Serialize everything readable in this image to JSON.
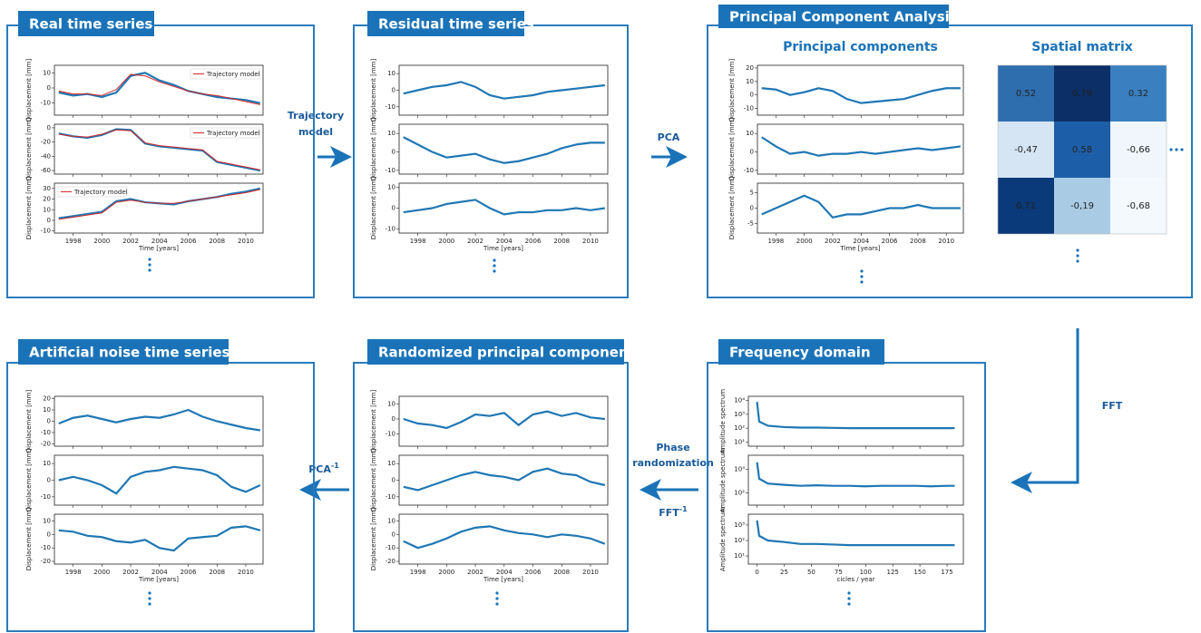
{
  "panels": [
    {
      "title": "Real time series",
      "xlabel": "Time [years]",
      "xlim": [
        1996.7,
        2011.2
      ],
      "xticks": [
        1998,
        2000,
        2002,
        2004,
        2006,
        2008,
        2010
      ],
      "x": [
        1997,
        1998,
        1999,
        2000,
        2001,
        2002,
        2003,
        2004,
        2005,
        2006,
        2007,
        2008,
        2009,
        2010,
        2011
      ],
      "plots": [
        {
          "ylabel": "Displacement [mm]",
          "ylim": [
            -18,
            15
          ],
          "yticks": [
            -10,
            0,
            10
          ],
          "values": [
            -3,
            -5,
            -4,
            -6,
            -3,
            8,
            10,
            5,
            2,
            -2,
            -4,
            -6,
            -7,
            -8,
            -10
          ],
          "trajectory": {
            "name": "Trajectory model",
            "color": "#d62728",
            "legend": "upper right",
            "values": [
              -2,
              -4,
              -4,
              -5,
              -1,
              9,
              8,
              4,
              1,
              -2,
              -4,
              -5,
              -7,
              -9,
              -11
            ]
          }
        },
        {
          "ylabel": "Displacement [mm]",
          "ylim": [
            -65,
            5
          ],
          "yticks": [
            -60,
            -40,
            -20,
            0
          ],
          "values": [
            -8,
            -12,
            -14,
            -10,
            -2,
            -3,
            -22,
            -26,
            -28,
            -30,
            -32,
            -48,
            -52,
            -56,
            -60
          ],
          "trajectory": {
            "name": "Trajectory model",
            "color": "#d62728",
            "legend": "upper right",
            "values": [
              -9,
              -12,
              -13,
              -9,
              -3,
              -4,
              -21,
              -25,
              -27,
              -29,
              -31,
              -47,
              -51,
              -55,
              -59
            ]
          }
        },
        {
          "ylabel": "Displacement [mm]",
          "ylim": [
            -12,
            35
          ],
          "yticks": [
            -10,
            0,
            10,
            20,
            30
          ],
          "values": [
            2,
            4,
            6,
            8,
            18,
            20,
            17,
            16,
            15,
            18,
            20,
            22,
            25,
            27,
            30
          ],
          "trajectory": {
            "name": "Trajectory model",
            "color": "#d62728",
            "legend": "upper left",
            "values": [
              1,
              3,
              5,
              7,
              17,
              19,
              17,
              16,
              16,
              18,
              20,
              22,
              24,
              26,
              29
            ]
          }
        }
      ]
    },
    {
      "title": "Residual time series",
      "xlabel": "Time [years]",
      "xlim": [
        1996.7,
        2011.2
      ],
      "xticks": [
        1998,
        2000,
        2002,
        2004,
        2006,
        2008,
        2010
      ],
      "x": [
        1997,
        1998,
        1999,
        2000,
        2001,
        2002,
        2003,
        2004,
        2005,
        2006,
        2007,
        2008,
        2009,
        2010,
        2011
      ],
      "plots": [
        {
          "ylabel": "Displacement [mm]",
          "ylim": [
            -15,
            15
          ],
          "yticks": [
            -10,
            0,
            10
          ],
          "values": [
            -2,
            0,
            2,
            3,
            5,
            2,
            -3,
            -5,
            -4,
            -3,
            -1,
            0,
            1,
            2,
            3
          ]
        },
        {
          "ylabel": "Displacement [mm]",
          "ylim": [
            -12,
            15
          ],
          "yticks": [
            -10,
            0,
            10
          ],
          "values": [
            8,
            4,
            0,
            -3,
            -2,
            -1,
            -4,
            -6,
            -5,
            -3,
            -1,
            2,
            4,
            5,
            5
          ]
        },
        {
          "ylabel": "Displacement [mm]",
          "ylim": [
            -12,
            12
          ],
          "yticks": [
            -10,
            0,
            10
          ],
          "values": [
            -2,
            -1,
            0,
            2,
            3,
            4,
            0,
            -3,
            -2,
            -2,
            -1,
            -1,
            0,
            -1,
            0
          ]
        }
      ]
    },
    {
      "title": "Principal Component Analysis",
      "subtitle": "Principal components",
      "xlabel": "Time [years]",
      "xlim": [
        1996.7,
        2011.2
      ],
      "xticks": [
        1998,
        2000,
        2002,
        2004,
        2006,
        2008,
        2010
      ],
      "x": [
        1997,
        1998,
        1999,
        2000,
        2001,
        2002,
        2003,
        2004,
        2005,
        2006,
        2007,
        2008,
        2009,
        2010,
        2011
      ],
      "plots": [
        {
          "ylabel": "Displacement [mm]",
          "ylim": [
            -15,
            22
          ],
          "yticks": [
            -10,
            0,
            10,
            20
          ],
          "values": [
            5,
            4,
            0,
            2,
            5,
            3,
            -3,
            -6,
            -5,
            -4,
            -3,
            0,
            3,
            5,
            5
          ]
        },
        {
          "ylabel": "Displacement [mm]",
          "ylim": [
            -12,
            15
          ],
          "yticks": [
            -10,
            0,
            10
          ],
          "values": [
            8,
            3,
            -1,
            0,
            -2,
            -1,
            -1,
            0,
            -1,
            0,
            1,
            2,
            1,
            2,
            3
          ]
        },
        {
          "ylabel": "Displacement [mm]",
          "ylim": [
            -8,
            8
          ],
          "yticks": [
            -5,
            0,
            5
          ],
          "values": [
            -2,
            0,
            2,
            4,
            2,
            -3,
            -2,
            -2,
            -1,
            0,
            0,
            1,
            0,
            0,
            0
          ]
        }
      ],
      "matrix": {
        "title": "Spatial matrix",
        "cells": [
          [
            "0.52",
            "0.79",
            "0.32"
          ],
          [
            "-0,47",
            "0.58",
            "-0,66"
          ],
          [
            "0.71",
            "-0,19",
            "-0,68"
          ]
        ],
        "colors": [
          [
            "#2f6eae",
            "#0b2f66",
            "#3a80c0"
          ],
          [
            "#d6e5f4",
            "#1d5ea8",
            "#f0f6fc"
          ],
          [
            "#0a3a7a",
            "#a9cce4",
            "#f4f9fe"
          ]
        ]
      }
    },
    {
      "title": "Frequency domain",
      "xlabel": "cicles / year",
      "xlim": [
        -8,
        190
      ],
      "xticks": [
        0,
        25,
        50,
        75,
        100,
        125,
        150,
        175
      ],
      "x": [
        0,
        2,
        10,
        25,
        40,
        55,
        70,
        85,
        100,
        115,
        130,
        145,
        160,
        175,
        182
      ],
      "plots": [
        {
          "ylabel": "Amplitude spectrum",
          "log": true,
          "ylim": [
            5,
            20000
          ],
          "yticks": [
            {
              "value": 10,
              "label": "10¹"
            },
            {
              "value": 100,
              "label": "10²"
            },
            {
              "value": 1000,
              "label": "10³"
            },
            {
              "value": 10000,
              "label": "10⁴"
            }
          ],
          "values": [
            8000,
            300,
            150,
            120,
            110,
            110,
            105,
            100,
            100,
            100,
            100,
            100,
            100,
            100,
            100
          ]
        },
        {
          "ylabel": "Amplitude spectrum",
          "log": true,
          "ylim": [
            30,
            4000
          ],
          "yticks": [
            {
              "value": 100,
              "label": "10²"
            },
            {
              "value": 1000,
              "label": "10³"
            }
          ],
          "values": [
            2000,
            400,
            250,
            220,
            200,
            210,
            200,
            200,
            190,
            200,
            200,
            200,
            190,
            200,
            200
          ]
        },
        {
          "ylabel": "Amplitude spectrum",
          "log": true,
          "ylim": [
            3,
            5000
          ],
          "yticks": [
            {
              "value": 10,
              "label": "10¹"
            },
            {
              "value": 100,
              "label": "10²"
            },
            {
              "value": 1000,
              "label": "10³"
            }
          ],
          "values": [
            2000,
            200,
            100,
            80,
            60,
            60,
            55,
            50,
            50,
            50,
            50,
            50,
            50,
            50,
            50
          ]
        }
      ]
    },
    {
      "title": "Randomized  principal components",
      "xlabel": "Time [years]",
      "xlim": [
        1996.7,
        2011.2
      ],
      "xticks": [
        1998,
        2000,
        2002,
        2004,
        2006,
        2008,
        2010
      ],
      "x": [
        1997,
        1998,
        1999,
        2000,
        2001,
        2002,
        2003,
        2004,
        2005,
        2006,
        2007,
        2008,
        2009,
        2010,
        2011
      ],
      "plots": [
        {
          "ylabel": "Displacement [mm]",
          "ylim": [
            -18,
            15
          ],
          "yticks": [
            -10,
            0,
            10
          ],
          "values": [
            0,
            -3,
            -4,
            -6,
            -2,
            3,
            2,
            4,
            -4,
            3,
            5,
            2,
            4,
            1,
            0
          ]
        },
        {
          "ylabel": "Displacement [mm]",
          "ylim": [
            -15,
            15
          ],
          "yticks": [
            -10,
            0,
            10
          ],
          "values": [
            -4,
            -6,
            -3,
            0,
            3,
            5,
            3,
            2,
            0,
            5,
            7,
            4,
            3,
            -1,
            -3
          ]
        },
        {
          "ylabel": "Displacement [mm]",
          "ylim": [
            -22,
            15
          ],
          "yticks": [
            -20,
            -10,
            0,
            10
          ],
          "values": [
            -5,
            -10,
            -7,
            -3,
            2,
            5,
            6,
            3,
            1,
            0,
            -2,
            0,
            -1,
            -3,
            -7
          ]
        }
      ]
    },
    {
      "title": "Artificial noise time series",
      "xlabel": "Time [years]",
      "xlim": [
        1996.7,
        2011.2
      ],
      "xticks": [
        1998,
        2000,
        2002,
        2004,
        2006,
        2008,
        2010
      ],
      "x": [
        1997,
        1998,
        1999,
        2000,
        2001,
        2002,
        2003,
        2004,
        2005,
        2006,
        2007,
        2008,
        2009,
        2010,
        2011
      ],
      "plots": [
        {
          "ylabel": "Displacement [mm]",
          "ylim": [
            -22,
            22
          ],
          "yticks": [
            -20,
            -10,
            0,
            10,
            20
          ],
          "values": [
            -2,
            3,
            5,
            2,
            -1,
            2,
            4,
            3,
            6,
            10,
            4,
            0,
            -3,
            -6,
            -8
          ]
        },
        {
          "ylabel": "Displacement [mm]",
          "ylim": [
            -15,
            15
          ],
          "yticks": [
            -10,
            0,
            10
          ],
          "values": [
            0,
            2,
            0,
            -3,
            -8,
            2,
            5,
            6,
            8,
            7,
            6,
            3,
            -4,
            -7,
            -3
          ]
        },
        {
          "ylabel": "Displacement [mm]",
          "ylim": [
            -22,
            15
          ],
          "yticks": [
            -20,
            -10,
            0,
            10
          ],
          "values": [
            3,
            2,
            -1,
            -2,
            -5,
            -6,
            -4,
            -10,
            -12,
            -3,
            -2,
            -1,
            5,
            6,
            3
          ]
        }
      ]
    }
  ],
  "arrows": [
    {
      "lines": [
        "Trajectory",
        "model"
      ]
    },
    {
      "label": "PCA"
    },
    {
      "label": "FFT"
    },
    {
      "lines": [
        "Phase",
        "randomization"
      ],
      "label": "FFT",
      "superscript": "-1"
    },
    {
      "label": "PCA",
      "superscript": "-1"
    }
  ]
}
